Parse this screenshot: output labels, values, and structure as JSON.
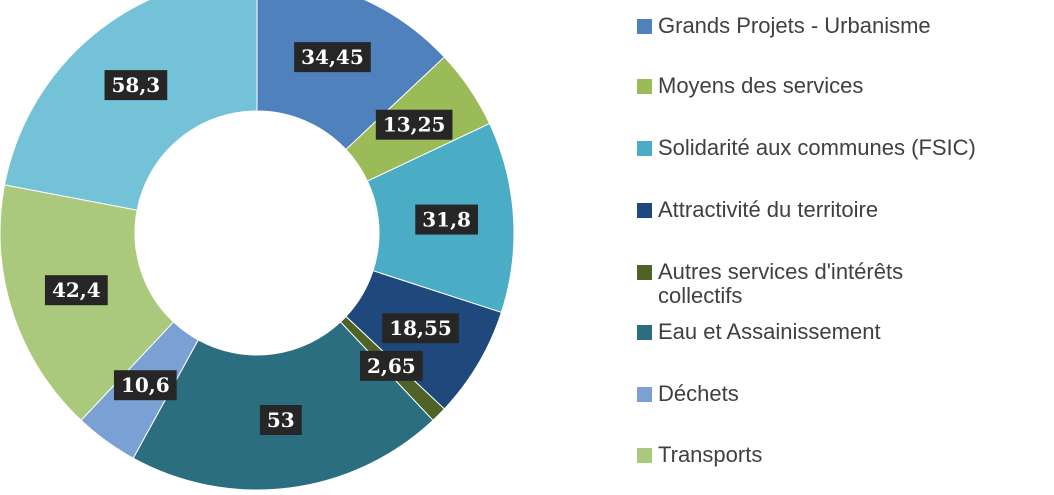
{
  "chart_data": {
    "type": "donut",
    "categories": [
      "Grands Projets - Urbanisme",
      "Moyens des services",
      "Solidarité aux communes (FSIC)",
      "Attractivité du territoire",
      "Autres services d'intérêts collectifs",
      "Eau et Assainissement",
      "Déchets",
      "Transports",
      null
    ],
    "values": [
      34.45,
      13.25,
      31.8,
      18.55,
      2.65,
      53,
      10.6,
      42.4,
      58.3
    ],
    "value_labels": [
      "34,45",
      "13,25",
      "31,8",
      "18,55",
      "2,65",
      "53",
      "10,6",
      "42,4",
      "58,3"
    ],
    "colors": [
      "#4f81bd",
      "#9bbb59",
      "#4bacc6",
      "#1f497d",
      "#4f6228",
      "#2a6e80",
      "#7ba0d4",
      "#aac97c",
      "#74c2d8"
    ]
  }
}
